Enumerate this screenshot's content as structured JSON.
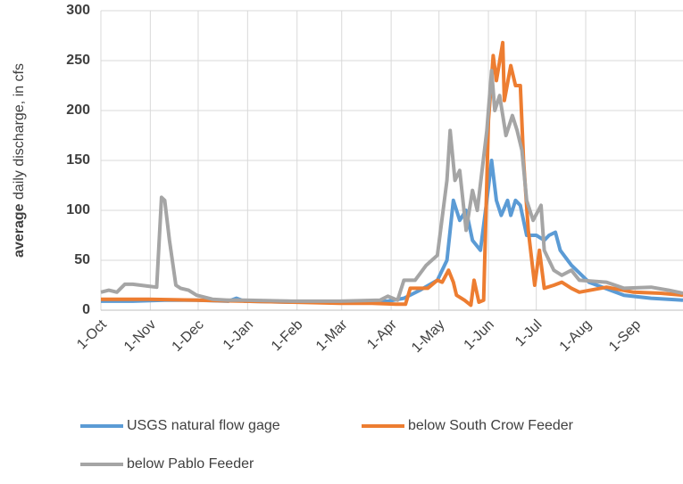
{
  "chart_data": {
    "type": "line",
    "ylabel": [
      "average",
      "daily discharge, in cfs"
    ],
    "xlim": [
      0,
      365
    ],
    "ylim": [
      0,
      300
    ],
    "xticks": [
      {
        "value": 0,
        "label": "1-Oct"
      },
      {
        "value": 31,
        "label": "1-Nov"
      },
      {
        "value": 61,
        "label": "1-Dec"
      },
      {
        "value": 92,
        "label": "1-Jan"
      },
      {
        "value": 123,
        "label": "1-Feb"
      },
      {
        "value": 151,
        "label": "1-Mar"
      },
      {
        "value": 182,
        "label": "1-Apr"
      },
      {
        "value": 212,
        "label": "1-May"
      },
      {
        "value": 243,
        "label": "1-Jun"
      },
      {
        "value": 273,
        "label": "1-Jul"
      },
      {
        "value": 304,
        "label": "1-Aug"
      },
      {
        "value": 335,
        "label": "1-Sep"
      }
    ],
    "yticks": [
      0,
      50,
      100,
      150,
      200,
      250,
      300
    ],
    "grid": true,
    "series": [
      {
        "name": "USGS natural flow gage",
        "color": "#5b9bd5",
        "x": [
          0,
          20,
          40,
          60,
          80,
          85,
          90,
          120,
          150,
          180,
          190,
          200,
          211,
          217,
          221,
          225,
          229,
          233,
          238,
          242,
          245,
          248,
          251,
          255,
          257,
          260,
          263,
          267,
          273,
          278,
          281,
          285,
          288,
          295,
          306,
          328,
          345,
          365
        ],
        "values": [
          9,
          9,
          10,
          10,
          9,
          12,
          9,
          8,
          8,
          9,
          12,
          20,
          30,
          50,
          110,
          90,
          100,
          70,
          60,
          110,
          150,
          110,
          95,
          110,
          95,
          110,
          105,
          75,
          75,
          70,
          75,
          78,
          60,
          45,
          28,
          15,
          12,
          10
        ]
      },
      {
        "name": "below South Crow Feeder",
        "color": "#ed7d31",
        "x": [
          0,
          30,
          60,
          90,
          120,
          150,
          170,
          185,
          191,
          194,
          205,
          211,
          214,
          218,
          221,
          223,
          228,
          232,
          234,
          237,
          240,
          243,
          246,
          248,
          252,
          253,
          257,
          260,
          263,
          265,
          268,
          272,
          275,
          278,
          284,
          289,
          295,
          300,
          317,
          334,
          351,
          365
        ],
        "values": [
          11,
          11,
          10,
          9,
          8,
          7,
          7,
          6,
          6,
          22,
          22,
          30,
          28,
          40,
          28,
          15,
          10,
          5,
          30,
          8,
          10,
          190,
          255,
          230,
          268,
          210,
          245,
          225,
          225,
          150,
          80,
          25,
          60,
          22,
          25,
          28,
          22,
          18,
          23,
          18,
          17,
          15
        ]
      },
      {
        "name": "below Pablo Feeder",
        "color": "#a5a5a5",
        "x": [
          0,
          5,
          10,
          15,
          20,
          25,
          30,
          35,
          38,
          40,
          43,
          47,
          50,
          55,
          60,
          70,
          80,
          90,
          120,
          150,
          175,
          180,
          183,
          186,
          190,
          197,
          204,
          211,
          217,
          219,
          222,
          225,
          229,
          233,
          236,
          242,
          245,
          247,
          250,
          254,
          258,
          261,
          264,
          267,
          271,
          276,
          278,
          284,
          289,
          295,
          300,
          317,
          328,
          345,
          356,
          365
        ],
        "values": [
          18,
          20,
          18,
          26,
          26,
          25,
          24,
          23,
          113,
          110,
          70,
          25,
          22,
          20,
          15,
          11,
          10,
          10,
          9,
          9,
          10,
          14,
          12,
          10,
          30,
          30,
          45,
          55,
          130,
          180,
          130,
          140,
          80,
          120,
          100,
          180,
          240,
          200,
          215,
          175,
          195,
          180,
          160,
          110,
          90,
          105,
          60,
          40,
          35,
          40,
          30,
          28,
          22,
          23,
          20,
          17
        ]
      }
    ]
  }
}
